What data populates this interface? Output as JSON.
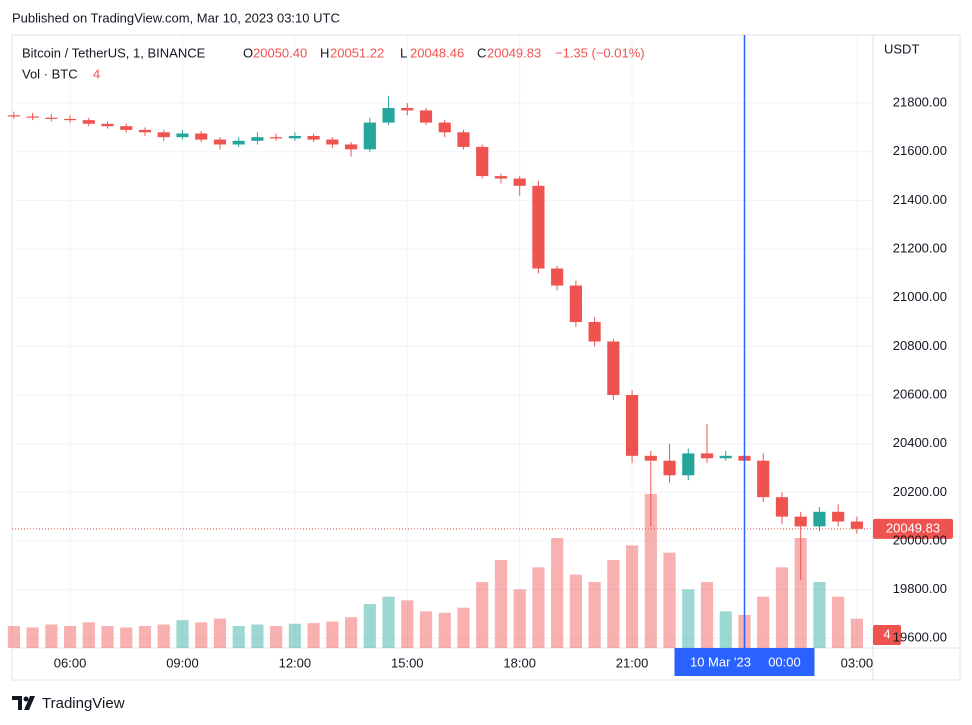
{
  "published": "Published on TradingView.com, Mar 10, 2023 03:10 UTC",
  "brand": "TradingView",
  "chart_data": {
    "type": "candlestick",
    "title": "Bitcoin / TetherUS, 1, BINANCE",
    "legend": [
      {
        "label": "O",
        "value": "20050.40"
      },
      {
        "label": "H",
        "value": "20051.22"
      },
      {
        "label": "L",
        "value": "20048.46"
      },
      {
        "label": "C",
        "value": "20049.83"
      }
    ],
    "change": "−1.35 (−0.01%)",
    "volume_title": "Vol · BTC",
    "last_volume": 4,
    "y_unit": "USDT",
    "up_color": "#26a69a",
    "down_color": "#ef5350",
    "grid": true,
    "x": [
      4.5,
      5,
      5.5,
      6,
      6.5,
      7,
      7.5,
      8,
      8.5,
      9,
      9.5,
      10,
      10.5,
      11,
      11.5,
      12,
      12.5,
      13,
      13.5,
      14,
      14.5,
      15,
      15.5,
      16,
      16.5,
      17,
      17.5,
      18,
      18.5,
      19,
      19.5,
      20,
      20.5,
      21,
      21.5,
      22,
      22.5,
      23,
      23.5,
      24,
      24.5,
      25,
      25.5,
      26,
      26.5,
      27
    ],
    "open": [
      21750,
      21745,
      21740,
      21735,
      21730,
      21715,
      21705,
      21690,
      21680,
      21660,
      21675,
      21650,
      21630,
      21645,
      21660,
      21655,
      21665,
      21650,
      21630,
      21610,
      21720,
      21780,
      21770,
      21720,
      21680,
      21620,
      21500,
      21490,
      21460,
      21120,
      21050,
      20900,
      20820,
      20600,
      20350,
      20330,
      20270,
      20360,
      20340,
      20350,
      20330,
      20180,
      20100,
      20060,
      20120,
      20080
    ],
    "high": [
      21765,
      21760,
      21755,
      21750,
      21740,
      21725,
      21715,
      21700,
      21690,
      21690,
      21685,
      21660,
      21660,
      21680,
      21675,
      21680,
      21675,
      21660,
      21640,
      21740,
      21830,
      21800,
      21780,
      21730,
      21690,
      21630,
      21510,
      21500,
      21480,
      21130,
      21070,
      20920,
      20830,
      20620,
      20370,
      20400,
      20380,
      20480,
      20370,
      20370,
      20360,
      20200,
      20120,
      20140,
      20150,
      20100
    ],
    "low": [
      21735,
      21730,
      21725,
      21720,
      21705,
      21695,
      21680,
      21665,
      21645,
      21650,
      21640,
      21610,
      21620,
      21630,
      21645,
      21645,
      21640,
      21615,
      21580,
      21600,
      21710,
      21750,
      21710,
      21660,
      21610,
      21490,
      21470,
      21420,
      21100,
      21030,
      20880,
      20800,
      20580,
      20320,
      20060,
      20240,
      20250,
      20320,
      20330,
      20320,
      20160,
      20070,
      19840,
      20040,
      20060,
      20030
    ],
    "close": [
      21745,
      21740,
      21735,
      21730,
      21715,
      21705,
      21690,
      21680,
      21660,
      21675,
      21650,
      21630,
      21645,
      21660,
      21655,
      21665,
      21650,
      21630,
      21610,
      21720,
      21780,
      21770,
      21720,
      21680,
      21620,
      21500,
      21490,
      21460,
      21120,
      21050,
      20900,
      20820,
      20600,
      20350,
      20330,
      20270,
      20360,
      20340,
      20350,
      20330,
      20180,
      20100,
      20060,
      20120,
      20080,
      20050
    ],
    "volume": [
      300,
      280,
      320,
      300,
      350,
      300,
      280,
      300,
      320,
      380,
      350,
      400,
      300,
      320,
      300,
      330,
      340,
      360,
      420,
      600,
      700,
      650,
      500,
      480,
      550,
      900,
      1200,
      800,
      1100,
      1500,
      1000,
      900,
      1200,
      1400,
      2100,
      1300,
      800,
      900,
      500,
      450,
      700,
      1100,
      1500,
      900,
      700,
      400
    ],
    "volume_lim": [
      0,
      3000
    ],
    "xlim": [
      4.45,
      27.43
    ],
    "xticks": [
      {
        "value": 6,
        "label": "06:00"
      },
      {
        "value": 9,
        "label": "09:00"
      },
      {
        "value": 12,
        "label": "12:00"
      },
      {
        "value": 15,
        "label": "15:00"
      },
      {
        "value": 18,
        "label": "18:00"
      },
      {
        "value": 21,
        "label": "21:00"
      },
      {
        "value": 27,
        "label": "03:00"
      }
    ],
    "ylim": [
      19560,
      22080
    ],
    "yticks": [
      {
        "value": 19600,
        "label": "19600.00"
      },
      {
        "value": 19800,
        "label": "19800.00"
      },
      {
        "value": 20000,
        "label": "20000.00"
      },
      {
        "value": 20200,
        "label": "20200.00"
      },
      {
        "value": 20400,
        "label": "20400.00"
      },
      {
        "value": 20600,
        "label": "20600.00"
      },
      {
        "value": 20800,
        "label": "20800.00"
      },
      {
        "value": 21000,
        "label": "21000.00"
      },
      {
        "value": 21200,
        "label": "21200.00"
      },
      {
        "value": 21400,
        "label": "21400.00"
      },
      {
        "value": 21600,
        "label": "21600.00"
      },
      {
        "value": 21800,
        "label": "21800.00"
      }
    ],
    "last_price": {
      "value": 20049.83,
      "label": "20049.83"
    },
    "crosshair": {
      "x": 24,
      "date": "10 Mar '23",
      "time": "00:00"
    }
  }
}
